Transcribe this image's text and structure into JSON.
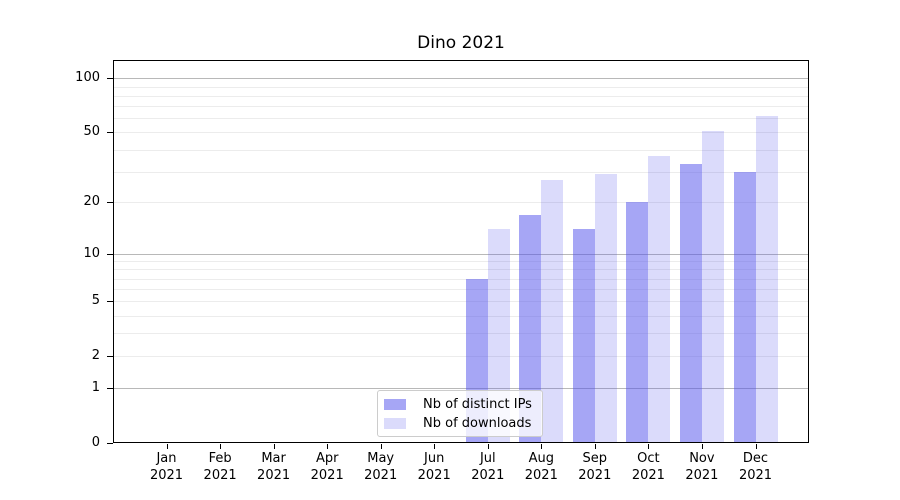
{
  "chart_data": {
    "type": "bar",
    "title": "Dino 2021",
    "categories": [
      "Jan",
      "Feb",
      "Mar",
      "Apr",
      "May",
      "Jun",
      "Jul",
      "Aug",
      "Sep",
      "Oct",
      "Nov",
      "Dec"
    ],
    "year_label": "2021",
    "series": [
      {
        "name": "Nb of distinct IPs",
        "color": "rgba(77,77,235,0.5)",
        "values": [
          0,
          0,
          0,
          0,
          0,
          0,
          7,
          17,
          14,
          20,
          33,
          30
        ]
      },
      {
        "name": "Nb of downloads",
        "color": "rgba(77,77,235,0.2)",
        "values": [
          0,
          0,
          0,
          0,
          0,
          0,
          14,
          27,
          29,
          37,
          51,
          62
        ]
      }
    ],
    "yscale": "log10(1+y)",
    "yticks": [
      0,
      1,
      2,
      5,
      10,
      20,
      50,
      100
    ],
    "major_gridlines": [
      1,
      10,
      100
    ],
    "minor_gridlines": [
      2,
      3,
      4,
      5,
      6,
      7,
      8,
      9,
      20,
      30,
      40,
      50,
      60,
      70,
      80,
      90
    ],
    "ylim": [
      0,
      127
    ],
    "grid": "horizontal",
    "legend_position": "lower center"
  }
}
